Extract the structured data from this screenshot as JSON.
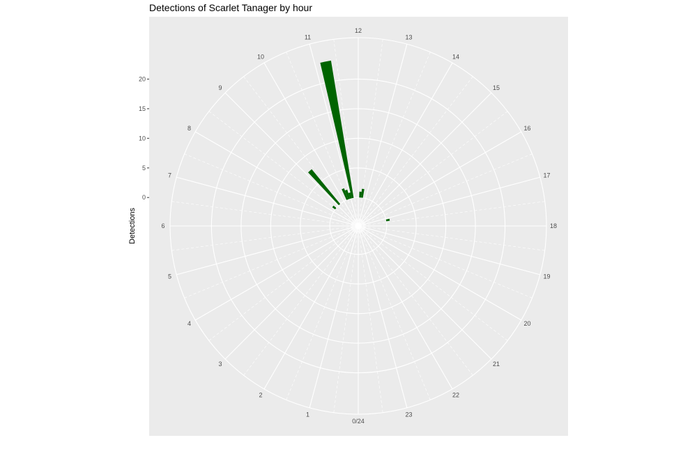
{
  "chart_data": {
    "type": "bar",
    "coord": "polar",
    "title": "Detections of Scarlet Tanager by hour",
    "xlabel": "",
    "ylabel": "Detections",
    "hour_labels": [
      "0/24",
      "1",
      "2",
      "3",
      "4",
      "5",
      "6",
      "7",
      "8",
      "9",
      "10",
      "11",
      "12",
      "13",
      "14",
      "15",
      "16",
      "17",
      "18",
      "19",
      "20",
      "21",
      "22",
      "23"
    ],
    "y_ticks": [
      0,
      5,
      10,
      15,
      20
    ],
    "ylim": [
      -4.8,
      27
    ],
    "categories": [
      "0",
      "1",
      "2",
      "3",
      "4",
      "5",
      "6",
      "7",
      "8",
      "9",
      "10",
      "11",
      "12",
      "13",
      "14",
      "15",
      "16",
      "17",
      "18",
      "19",
      "20",
      "21",
      "22",
      "23"
    ],
    "values": [
      0,
      0,
      0,
      0,
      0,
      0,
      0,
      0,
      0,
      0,
      0,
      0,
      0,
      0,
      0,
      0,
      0,
      0,
      0,
      0,
      0,
      0,
      0,
      0
    ],
    "bars": [
      {
        "hour": 6.0,
        "value": 0
      },
      {
        "hour": 8.5,
        "value": 0.6
      },
      {
        "hour": 9.25,
        "value": 7.6
      },
      {
        "hour": 10.5,
        "value": 2.0
      },
      {
        "hour": 10.75,
        "value": 1.6
      },
      {
        "hour": 11.0,
        "value": 1.0
      },
      {
        "hour": 11.25,
        "value": 23.5
      },
      {
        "hour": 12.25,
        "value": 1.0
      },
      {
        "hour": 12.5,
        "value": 1.5
      },
      {
        "hour": 17.25,
        "value": 0.6
      }
    ],
    "grid": true,
    "legend": "none",
    "bar_color": "#006400",
    "panel_color": "#EBEBEB",
    "grid_color": "#FFFFFF"
  }
}
